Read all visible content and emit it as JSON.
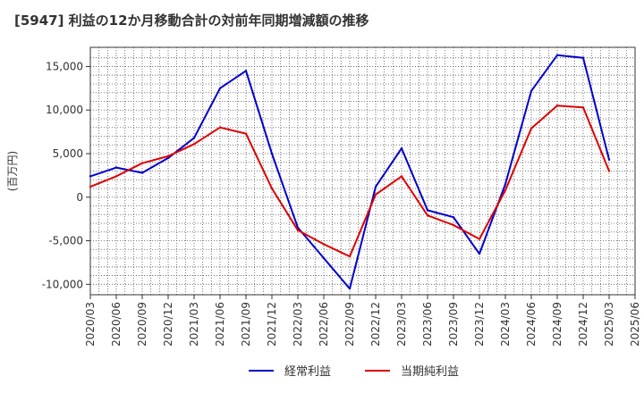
{
  "chart_data": {
    "type": "line",
    "title": "[5947]  利益の12か月移動合計の対前年同期増減額の推移",
    "ylabel": "(百万円)",
    "xlabel": "",
    "ylim": [
      -11200,
      17200
    ],
    "yticks": [
      15000,
      10000,
      5000,
      0,
      -5000,
      -10000
    ],
    "ytick_labels": [
      "15,000",
      "10,000",
      "5,000",
      "0",
      "-5,000",
      "-10,000"
    ],
    "xlim": [
      "2020/03",
      "2025/06"
    ],
    "categories": [
      "2020/03",
      "2020/06",
      "2020/09",
      "2020/12",
      "2021/03",
      "2021/06",
      "2021/09",
      "2021/12",
      "2022/03",
      "2022/06",
      "2022/09",
      "2022/12",
      "2023/03",
      "2023/06",
      "2023/09",
      "2023/12",
      "2024/03",
      "2024/06",
      "2024/09",
      "2024/12",
      "2025/03",
      "2025/06"
    ],
    "grid": true,
    "legend": "bottom",
    "series": [
      {
        "name": "経常利益",
        "color": "#0000cc",
        "values": [
          2400,
          3400,
          2800,
          4500,
          6800,
          12500,
          14500,
          5000,
          -3500,
          -7000,
          -10500,
          1200,
          5600,
          -1500,
          -2300,
          -6500,
          1500,
          12200,
          16300,
          16000,
          4300,
          null
        ]
      },
      {
        "name": "当期純利益",
        "color": "#dd0000",
        "values": [
          1200,
          2400,
          3900,
          4700,
          6100,
          8000,
          7300,
          1000,
          -3800,
          -5400,
          -6800,
          300,
          2400,
          -2100,
          -3200,
          -4800,
          800,
          7900,
          10500,
          10300,
          3000,
          null
        ]
      }
    ]
  }
}
